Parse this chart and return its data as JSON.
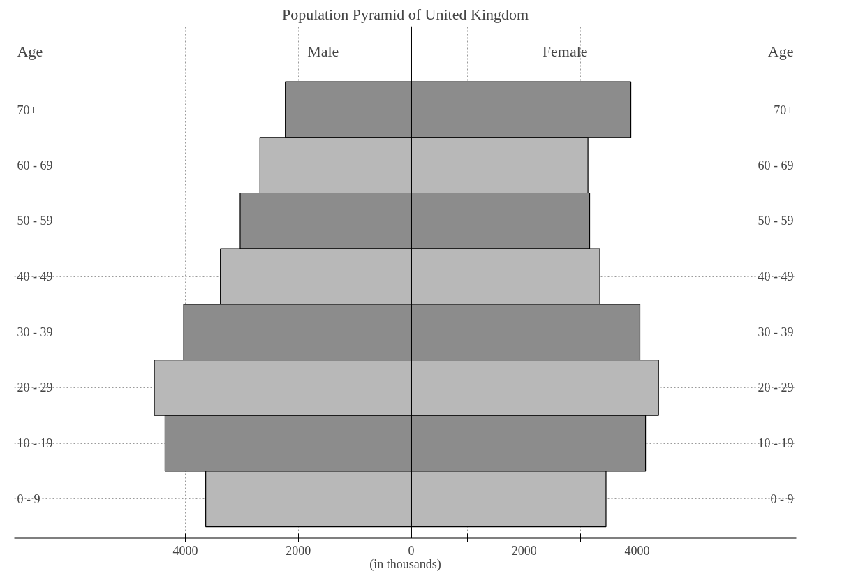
{
  "chart_data": {
    "type": "bar",
    "orientation": "horizontal",
    "title": "Population Pyramid of United Kingdom",
    "xlabel": "(in thousands)",
    "ylabel": "Age",
    "y2label": "Age",
    "categories": [
      "70+",
      "60 - 69",
      "50 - 59",
      "40 - 49",
      "30 - 39",
      "20 - 29",
      "10 - 19",
      "0 - 9"
    ],
    "series": [
      {
        "name": "Male",
        "colors": [
          "#8c8c8c",
          "#b8b8b8",
          "#8c8c8c",
          "#b8b8b8",
          "#8c8c8c",
          "#b8b8b8",
          "#8c8c8c",
          "#b8b8b8"
        ],
        "values": [
          -2230,
          -2680,
          -3030,
          -3380,
          -4030,
          -4550,
          -4360,
          -3640
        ]
      },
      {
        "name": "Female",
        "colors": [
          "#8c8c8c",
          "#b8b8b8",
          "#8c8c8c",
          "#b8b8b8",
          "#8c8c8c",
          "#b8b8b8",
          "#8c8c8c",
          "#b8b8b8"
        ],
        "values": [
          3890,
          3130,
          3160,
          3340,
          4050,
          4380,
          4150,
          3450
        ]
      }
    ],
    "xlim": [
      -7030,
      6820
    ],
    "stacked": true,
    "xticks": [
      {
        "value": -4000,
        "label": "4000"
      },
      {
        "value": -3000,
        "label": null
      },
      {
        "value": -2000,
        "label": "2000"
      },
      {
        "value": -1000,
        "label": null
      },
      0,
      {
        "value": 1000,
        "label": null
      },
      2000,
      {
        "value": 3000,
        "label": null
      },
      4000
    ],
    "grid": true
  }
}
